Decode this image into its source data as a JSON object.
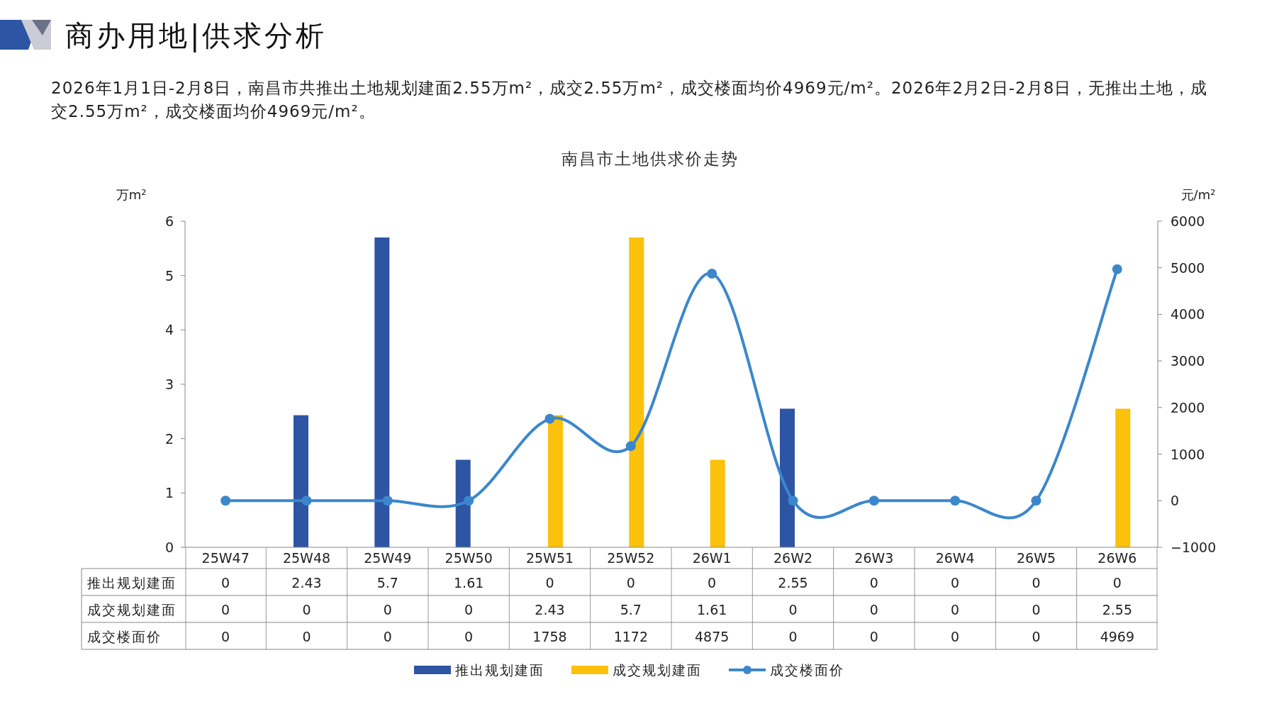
{
  "chart_data": {
    "type": "bar",
    "title": "南昌市土地供求价走势",
    "annotations": [
      "商办用地|供求分析",
      "2026年1月1日-2月8日，南昌市共推出土地规划建面2.55万m²，成交2.55万m²，成交楼面均价4969元/m²。2026年2月2日-2月8日，无推出土地，成交2.55万m²，成交楼面均价4969元/m²。"
    ],
    "ylabel": "万m²",
    "y2label": "元/m²",
    "categories": [
      "25W47",
      "25W48",
      "25W49",
      "25W50",
      "25W51",
      "25W52",
      "26W1",
      "26W2",
      "26W3",
      "26W4",
      "26W5",
      "26W6"
    ],
    "series": [
      {
        "name": "推出规划建面",
        "color": "#2e54a4",
        "values": [
          0,
          2.43,
          5.7,
          1.61,
          0,
          0,
          0,
          2.55,
          0,
          0,
          0,
          0
        ]
      },
      {
        "name": "成交规划建面",
        "color": "#fbc10b",
        "values": [
          0,
          0,
          0,
          0,
          2.43,
          5.7,
          1.61,
          0,
          0,
          0,
          0,
          2.55
        ]
      },
      {
        "name": "成交楼面价",
        "type": "line",
        "axis": "y2",
        "color": "#3b87cc",
        "marker": "circle",
        "values": [
          0,
          0,
          0,
          0,
          1758,
          1172,
          4875,
          0,
          0,
          0,
          0,
          4969
        ]
      }
    ],
    "ylim": [
      0,
      6
    ],
    "yticks": [
      0,
      1,
      2,
      3,
      4,
      5,
      6
    ],
    "y2lim": [
      -1000,
      6000
    ],
    "y2ticks": [
      -1000,
      0,
      1000,
      2000,
      3000,
      4000,
      5000,
      6000
    ],
    "data_labels": true,
    "grid": false,
    "legend": "bottom"
  }
}
